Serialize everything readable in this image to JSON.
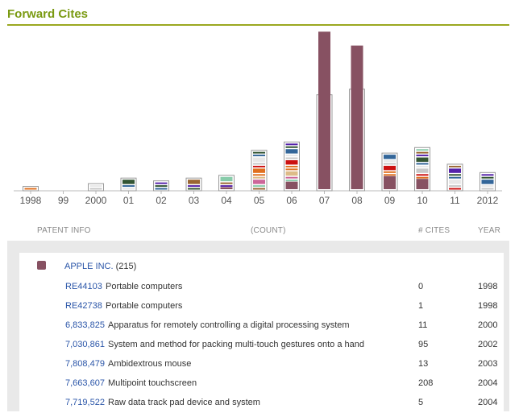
{
  "header": {
    "title": "Forward Cites"
  },
  "chart_data": {
    "type": "bar",
    "categories": [
      "1998",
      "99",
      "2000",
      "01",
      "02",
      "03",
      "04",
      "05",
      "06",
      "07",
      "08",
      "09",
      "10",
      "11",
      "2012"
    ],
    "series": [
      {
        "values": [
          0,
          0,
          0,
          0,
          0,
          0,
          1,
          0,
          3,
          57,
          52,
          5,
          4,
          0,
          0
        ],
        "color": "#875162"
      }
    ],
    "counts": [
      1,
      0,
      2,
      4,
      3,
      4,
      5,
      14,
      17,
      34,
      36,
      13,
      15,
      9,
      6
    ],
    "stack_palette": [
      "#875162",
      "#e07020",
      "#cc1111",
      "#c8c8c8",
      "#e8e8e8",
      "#336699",
      "#335533",
      "#5522aa",
      "#996633",
      "#88ccaa",
      "#cc6699",
      "#ddbb88"
    ]
  },
  "table": {
    "headers": {
      "patent": "PATENT INFO",
      "count": "(COUNT)",
      "cites": "# CITES",
      "year": "YEAR"
    },
    "company": {
      "name": "APPLE INC.",
      "count": "(215)"
    },
    "rows": [
      {
        "number": "RE44103",
        "title": "Portable computers",
        "cites": "0",
        "year": "1998"
      },
      {
        "number": "RE42738",
        "title": "Portable computers",
        "cites": "1",
        "year": "1998"
      },
      {
        "number": "6,833,825",
        "title": "Apparatus for remotely controlling a digital processing system",
        "cites": "11",
        "year": "2000"
      },
      {
        "number": "7,030,861",
        "title": "System and method for packing multi-touch gestures onto a hand",
        "cites": "95",
        "year": "2002"
      },
      {
        "number": "7,808,479",
        "title": "Ambidextrous mouse",
        "cites": "13",
        "year": "2003"
      },
      {
        "number": "7,663,607",
        "title": "Multipoint touchscreen",
        "cites": "208",
        "year": "2004"
      },
      {
        "number": "7,719,522",
        "title": "Raw data track pad device and system",
        "cites": "5",
        "year": "2004"
      }
    ]
  }
}
